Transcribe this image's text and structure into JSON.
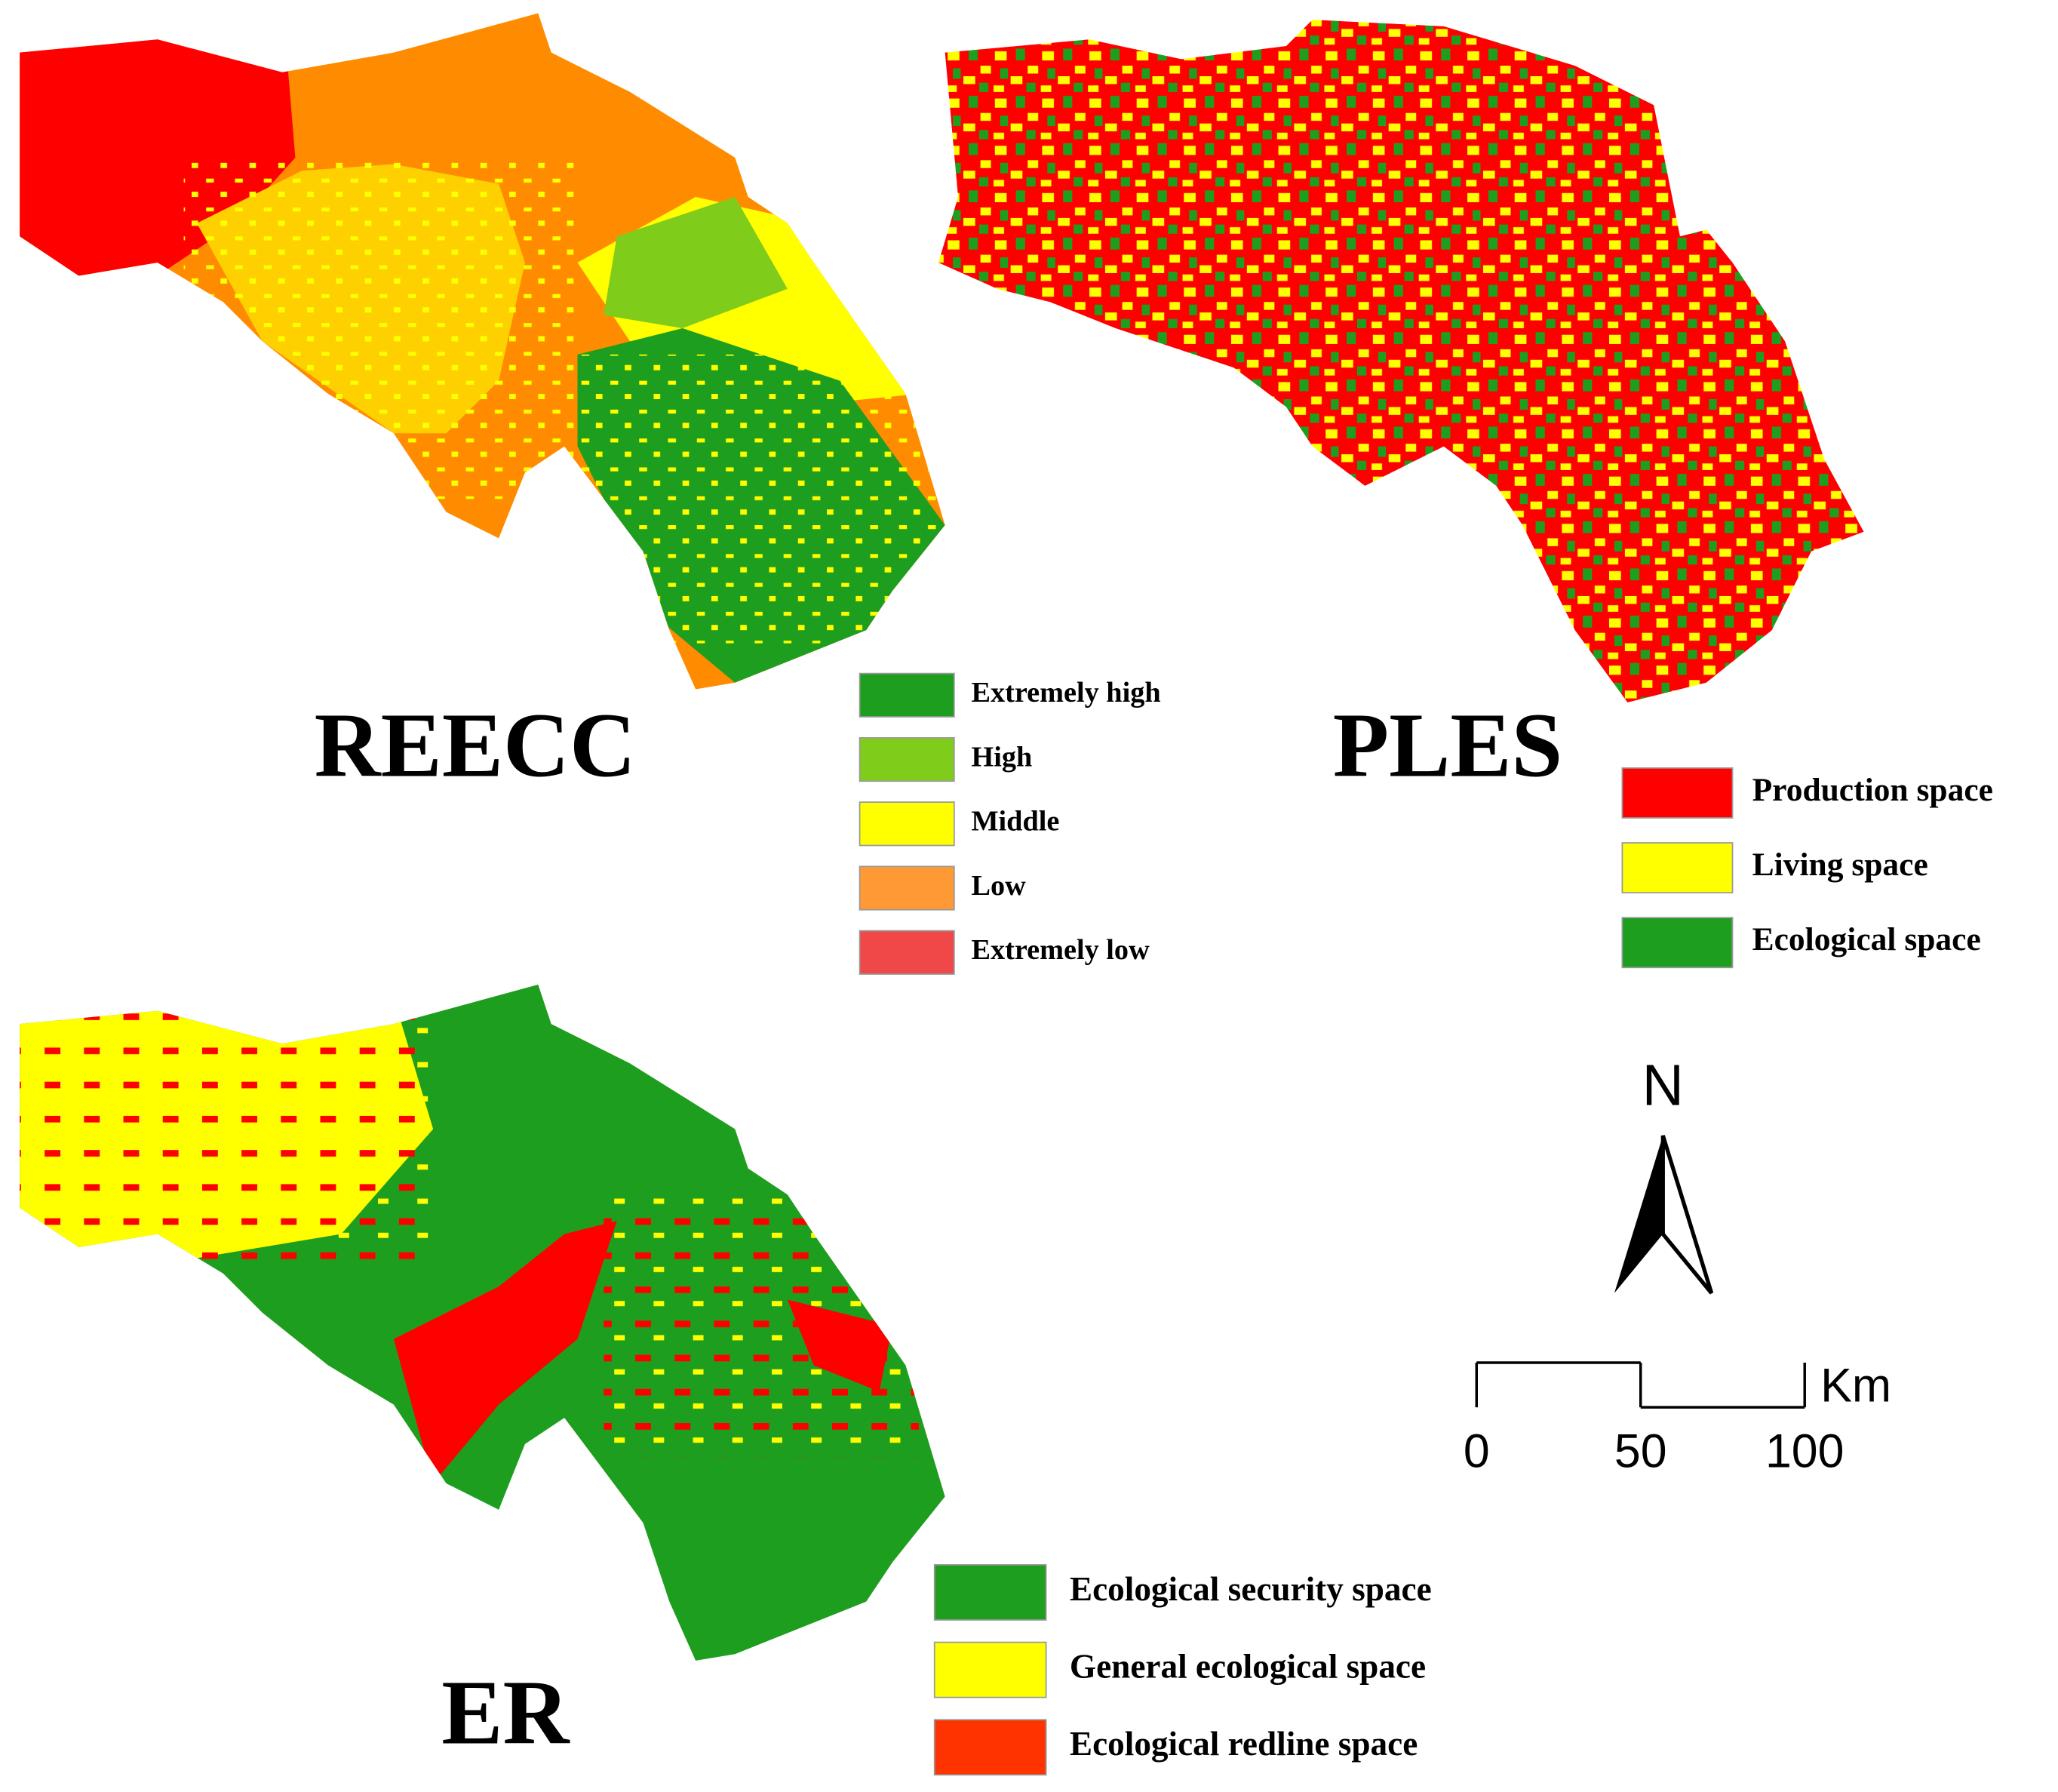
{
  "maps": [
    {
      "title": "REECC",
      "legend": [
        {
          "label": "Extremely high",
          "color": "#1e9e1e"
        },
        {
          "label": "High",
          "color": "#7fcc1a"
        },
        {
          "label": "Middle",
          "color": "#ffff00"
        },
        {
          "label": "Low",
          "color": "#ff9933"
        },
        {
          "label": "Extremely low",
          "color": "#f04848"
        }
      ]
    },
    {
      "title": "PLES",
      "legend": [
        {
          "label": "Production space",
          "color": "#ff0000"
        },
        {
          "label": "Living space",
          "color": "#ffff00"
        },
        {
          "label": "Ecological space",
          "color": "#1e9e1e"
        }
      ]
    },
    {
      "title": "ER",
      "legend": [
        {
          "label": "Ecological security space",
          "color": "#1e9e1e"
        },
        {
          "label": "General ecological space",
          "color": "#ffff00"
        },
        {
          "label": "Ecological redline space",
          "color": "#ff3300"
        }
      ]
    }
  ],
  "north_arrow": {
    "label": "N"
  },
  "scale_bar": {
    "unit": "Km",
    "ticks": [
      0,
      50,
      100
    ]
  }
}
